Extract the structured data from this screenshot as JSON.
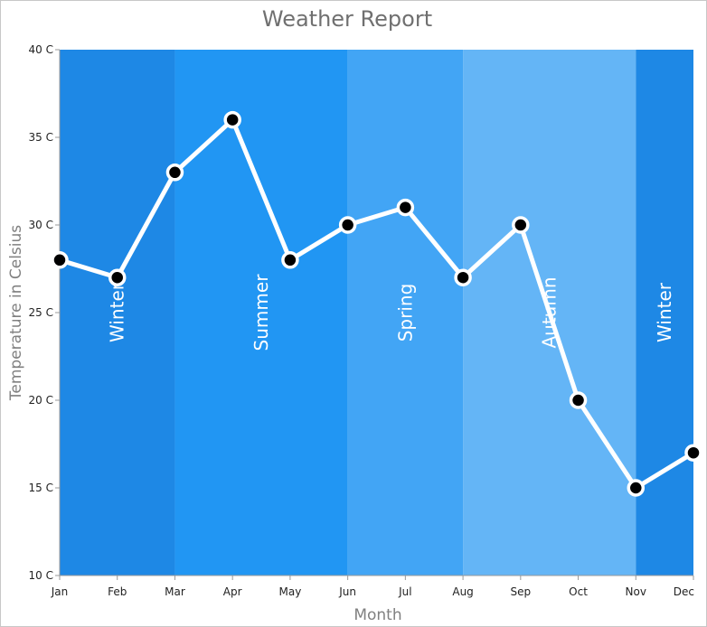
{
  "chart_data": {
    "type": "line",
    "title": "Weather Report",
    "xlabel": "Month",
    "ylabel": "Temperature in Celsius",
    "categories": [
      "Jan",
      "Feb",
      "Mar",
      "Apr",
      "May",
      "Jun",
      "Jul",
      "Aug",
      "Sep",
      "Oct",
      "Nov",
      "Dec"
    ],
    "series": [
      {
        "values": [
          28,
          27,
          33,
          36,
          28,
          30,
          31,
          27,
          30,
          20,
          15,
          17
        ]
      }
    ],
    "ylim": [
      10,
      40
    ],
    "yticks": [
      10,
      15,
      20,
      25,
      30,
      35,
      40
    ],
    "ytick_labels": [
      "10 C",
      "15 C",
      "20 C",
      "25 C",
      "30 C",
      "35 C",
      "40 C"
    ],
    "grid": false,
    "bands": [
      {
        "label": "Winter",
        "start": 0,
        "end": 2,
        "color": "#1e88e5"
      },
      {
        "label": "Summer",
        "start": 2,
        "end": 5,
        "color": "#2196f3"
      },
      {
        "label": "Spring",
        "start": 5,
        "end": 7,
        "color": "#42a5f5"
      },
      {
        "label": "Autumn",
        "start": 7,
        "end": 10,
        "color": "#64b5f6"
      },
      {
        "label": "Winter",
        "start": 10,
        "end": 11,
        "color": "#1e88e5"
      }
    ],
    "colors": {
      "line": "#ffffff",
      "marker_fill": "#000000",
      "marker_stroke": "#ffffff",
      "axis": "#999999"
    }
  }
}
